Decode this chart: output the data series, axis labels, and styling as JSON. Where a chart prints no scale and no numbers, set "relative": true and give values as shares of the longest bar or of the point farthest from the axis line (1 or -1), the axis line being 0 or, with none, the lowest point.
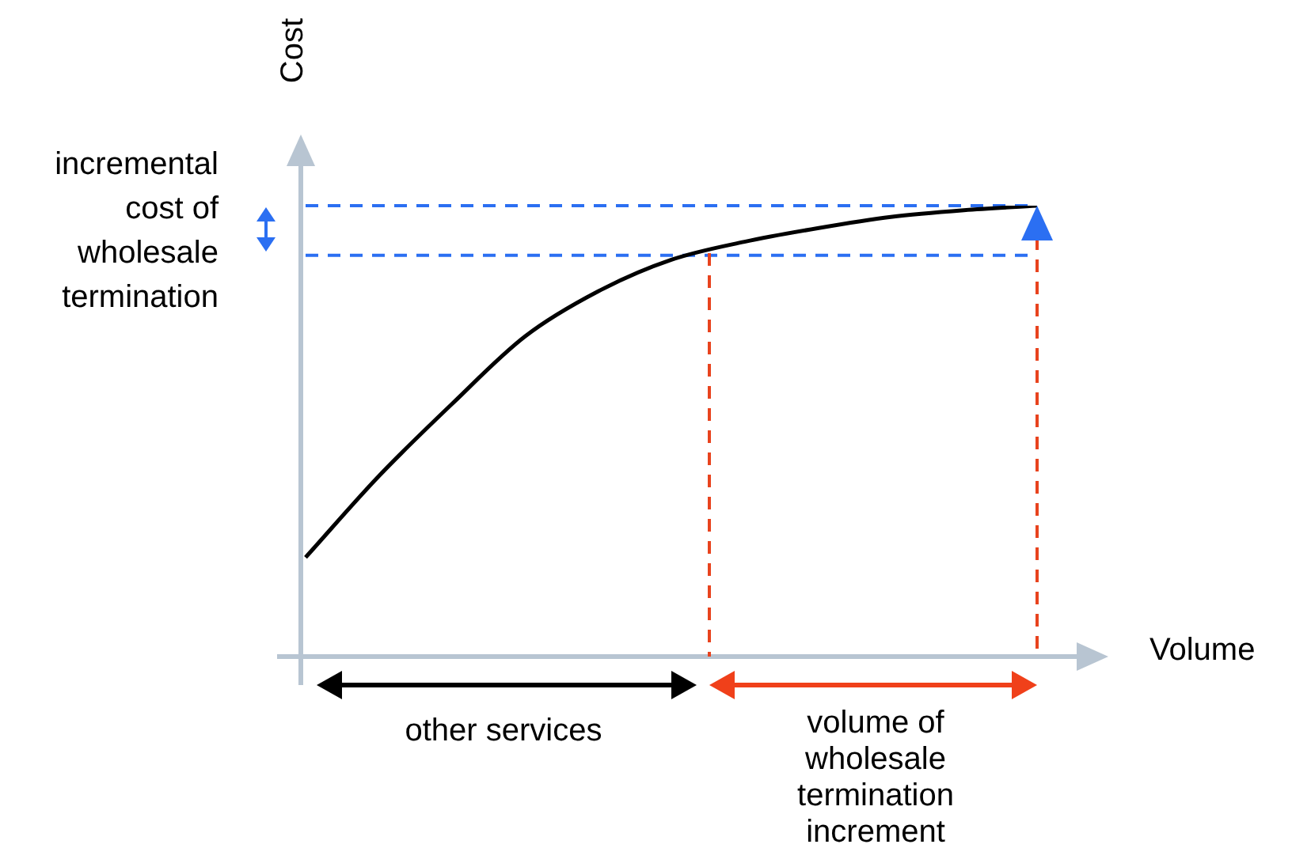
{
  "chart_data": {
    "type": "line",
    "relative": true,
    "xlabel": "Volume",
    "ylabel": "Cost",
    "annotations": [
      "incremental cost of wholesale termination",
      "other services",
      "volume of wholesale termination increment"
    ],
    "categories": [
      null,
      null,
      null,
      null,
      null,
      null,
      null,
      null,
      null,
      null,
      null
    ],
    "values": [
      0.22,
      0.4,
      0.56,
      0.71,
      0.81,
      0.88,
      0.92,
      0.95,
      0.975,
      0.99,
      1
    ],
    "color": "#000000",
    "marker": "none",
    "line_style": "solid",
    "legend": false,
    "ref_lines": [
      {
        "axis": "y",
        "value": 1,
        "color": "#2b6ff2",
        "line_style": "dashed"
      },
      {
        "axis": "y",
        "value": 0.89,
        "color": "#2b6ff2",
        "line_style": "dashed"
      }
    ]
  }
}
